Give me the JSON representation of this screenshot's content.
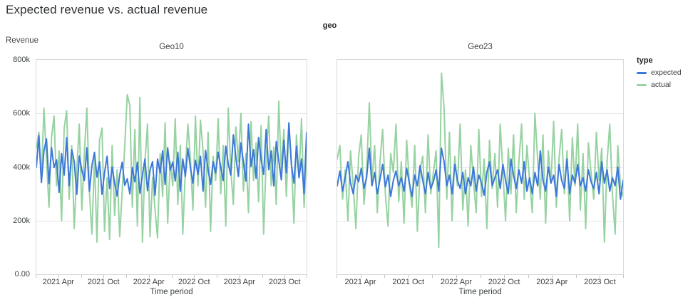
{
  "page": {
    "title": "Expected revenue vs. actual revenue"
  },
  "legend": {
    "title": "type",
    "items": [
      {
        "label": "expected",
        "color": "#3c78d8"
      },
      {
        "label": "actual",
        "color": "#97d2a2"
      }
    ]
  },
  "chart_data": {
    "type": "line",
    "title": "Expected revenue vs. actual revenue",
    "facet_field": "geo",
    "xlabel": "Time period",
    "ylabel": "Revenue",
    "x_range": "Jan 2021 - Dec 2023",
    "x_total_months": 36,
    "points_per_series": 108,
    "ylim_k": [
      0,
      800
    ],
    "grid": true,
    "legend_position": "right",
    "y_ticks": [
      {
        "value_k": 0,
        "label": "0.00"
      },
      {
        "value_k": 200,
        "label": "200k"
      },
      {
        "value_k": 400,
        "label": "400k"
      },
      {
        "value_k": 600,
        "label": "600k"
      },
      {
        "value_k": 800,
        "label": "800k"
      }
    ],
    "x_minor_tick_months": [
      0,
      3,
      6,
      9,
      12,
      15,
      18,
      21,
      24,
      27,
      30,
      33,
      36
    ],
    "x_tick_labels": [
      {
        "month": 3,
        "label": "2021 Apr"
      },
      {
        "month": 9,
        "label": "2021 Oct"
      },
      {
        "month": 15,
        "label": "2022 Apr"
      },
      {
        "month": 21,
        "label": "2022 Oct"
      },
      {
        "month": 27,
        "label": "2023 Apr"
      },
      {
        "month": 33,
        "label": "2023 Oct"
      }
    ],
    "facets": [
      {
        "name": "Geo10",
        "series": [
          {
            "name": "expected",
            "color": "#3c78d8",
            "values_k": [
              400,
              517,
              342,
              460,
              505,
              338,
              472,
              398,
              427,
              305,
              450,
              370,
              510,
              330,
              465,
              420,
              298,
              441,
              388,
              350,
              472,
              310,
              405,
              455,
              362,
              420,
              298,
              378,
              440,
              320,
              400,
              340,
              292,
              370,
              418,
              332,
              356,
              300,
              398,
              345,
              418,
              302,
              370,
              430,
              312,
              388,
              420,
              295,
              430,
              378,
              460,
              335,
              472,
              388,
              418,
              348,
              455,
              310,
              430,
              365,
              470,
              398,
              340,
              425,
              372,
              440,
              310,
              462,
              390,
              335,
              420,
              378,
              455,
              400,
              350,
              478,
              412,
              370,
              520,
              438,
              365,
              490,
              418,
              348,
              560,
              402,
              465,
              358,
              510,
              430,
              372,
              540,
              390,
              460,
              330,
              495,
              425,
              352,
              500,
              378,
              565,
              410,
              340,
              478,
              360,
              430,
              300,
              528
            ]
          },
          {
            "name": "actual",
            "color": "#97d2a2",
            "values_k": [
              470,
              530,
              355,
              620,
              430,
              250,
              510,
              590,
              330,
              460,
              200,
              545,
              610,
              280,
              480,
              170,
              390,
              560,
              240,
              450,
              620,
              310,
              150,
              430,
              120,
              500,
              545,
              160,
              360,
              130,
              480,
              220,
              390,
              140,
              310,
              480,
              670,
              630,
              250,
              540,
              180,
              660,
              120,
              420,
              560,
              140,
              360,
              240,
              135,
              450,
              290,
              565,
              190,
              420,
              330,
              580,
              260,
              480,
              150,
              390,
              560,
              430,
              240,
              590,
              330,
              575,
              460,
              250,
              530,
              160,
              440,
              350,
              580,
              300,
              480,
              180,
              620,
              390,
              260,
              550,
              420,
              600,
              310,
              450,
              230,
              570,
              350,
              490,
              270,
              555,
              150,
              430,
              590,
              330,
              475,
              260,
              645,
              380,
              540,
              290,
              560,
              420,
              190,
              520,
              360,
              580,
              250,
              445
            ]
          }
        ]
      },
      {
        "name": "Geo23",
        "series": [
          {
            "name": "expected",
            "color": "#3c78d8",
            "values_k": [
              330,
              385,
              310,
              360,
              420,
              340,
              300,
              370,
              345,
              395,
              320,
              360,
              470,
              330,
              380,
              300,
              355,
              410,
              325,
              370,
              290,
              350,
              385,
              330,
              360,
              310,
              395,
              340,
              290,
              370,
              330,
              405,
              350,
              300,
              380,
              320,
              345,
              390,
              310,
              470,
              420,
              330,
              370,
              300,
              410,
              350,
              320,
              380,
              300,
              360,
              330,
              400,
              310,
              370,
              340,
              295,
              380,
              420,
              330,
              360,
              390,
              320,
              410,
              350,
              300,
              430,
              370,
              320,
              390,
              340,
              420,
              310,
              360,
              300,
              380,
              330,
              460,
              350,
              310,
              400,
              340,
              370,
              290,
              410,
              350,
              320,
              430,
              300,
              370,
              340,
              410,
              330,
              360,
              310,
              390,
              345,
              320,
              380,
              300,
              420,
              340,
              390,
              310,
              360,
              330,
              400,
              280,
              350
            ]
          },
          {
            "name": "actual",
            "color": "#97d2a2",
            "values_k": [
              430,
              480,
              280,
              390,
              200,
              460,
              330,
              170,
              440,
              520,
              260,
              380,
              640,
              350,
              480,
              230,
              420,
              540,
              300,
              180,
              450,
              380,
              560,
              270,
              420,
              190,
              500,
              340,
              250,
              480,
              160,
              390,
              440,
              230,
              520,
              300,
              380,
              460,
              100,
              750,
              620,
              280,
              530,
              200,
              440,
              330,
              560,
              240,
              390,
              180,
              480,
              350,
              230,
              540,
              290,
              430,
              170,
              500,
              320,
              450,
              250,
              560,
              380,
              200,
              470,
              300,
              520,
              230,
              420,
              560,
              280,
              480,
              350,
              230,
              600,
              430,
              280,
              520,
              190,
              460,
              340,
              570,
              250,
              430,
              540,
              300,
              460,
              200,
              510,
              330,
              560,
              240,
              450,
              170,
              490,
              380,
              280,
              530,
              350,
              470,
              120,
              420,
              560,
              300,
              150,
              480,
              330,
              290
            ]
          }
        ]
      }
    ]
  }
}
